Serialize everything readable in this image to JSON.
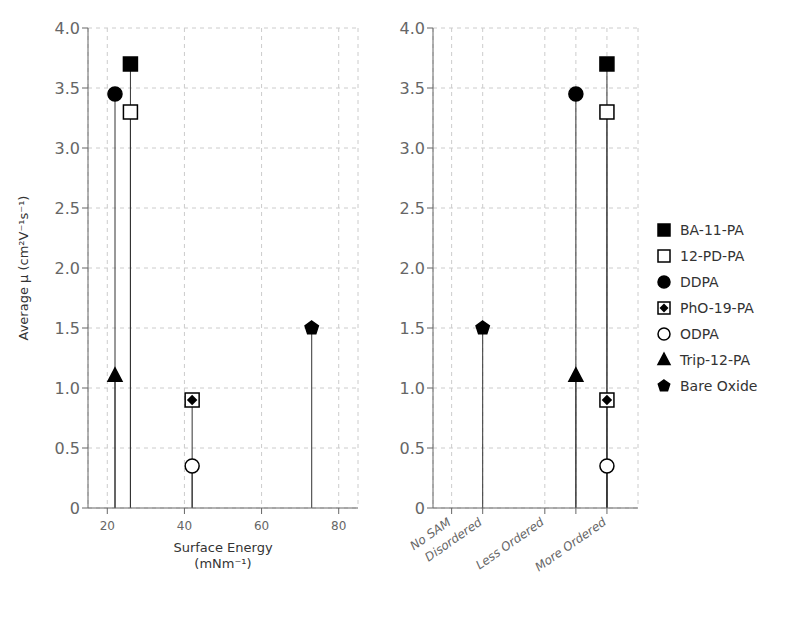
{
  "chart_data": [
    {
      "type": "scatter",
      "x_label": "Surface Energy\n(mNm⁻¹)",
      "y_label": "Average μ (cm²V⁻¹s⁻¹)",
      "xlim": [
        15,
        85
      ],
      "xticks": [
        20,
        40,
        60,
        80
      ],
      "ylim": [
        0,
        4.0
      ],
      "yticks": [
        0,
        0.5,
        {
          "value": 1.0,
          "label": "1.0"
        },
        1.5,
        {
          "value": 2.0,
          "label": "2.0"
        },
        2.5,
        {
          "value": 3.0,
          "label": "3.0"
        },
        3.5,
        {
          "value": 4.0,
          "label": "4.0"
        }
      ],
      "grid": true,
      "series": [
        {
          "name": "BA-11-PA",
          "marker": "square",
          "color": "black",
          "x": [
            26
          ],
          "values": [
            3.7
          ]
        },
        {
          "name": "12-PD-PA",
          "marker": "square",
          "color": "white",
          "x": [
            26
          ],
          "values": [
            3.3
          ]
        },
        {
          "name": "DDPA",
          "marker": "circle",
          "color": "black",
          "x": [
            22
          ],
          "values": [
            3.45
          ]
        },
        {
          "name": "PhO-19-PA",
          "marker": "diamond_in_square",
          "color": "black",
          "x": [
            42
          ],
          "values": [
            0.9
          ]
        },
        {
          "name": "ODPA",
          "marker": "circle",
          "color": "white",
          "x": [
            42
          ],
          "values": [
            0.35
          ]
        },
        {
          "name": "Trip-12-PA",
          "marker": "triangle",
          "color": "black",
          "x": [
            22
          ],
          "values": [
            1.1
          ]
        },
        {
          "name": "Bare Oxide",
          "marker": "pentagon",
          "color": "black",
          "x": [
            73
          ],
          "values": [
            1.5
          ]
        }
      ]
    },
    {
      "type": "scatter",
      "xlim": [
        -0.8,
        2.5
      ],
      "xticks": [
        {
          "value": -0.5,
          "label": "No SAM"
        },
        {
          "value": 0.0,
          "label": "Disordered"
        },
        {
          "value": 1.0,
          "label": "Less Ordered"
        },
        {
          "value": 1.5,
          "label": null
        },
        {
          "value": 2.0,
          "label": "More Ordered"
        }
      ],
      "ylim": [
        0,
        4.0
      ],
      "yticks": [
        0,
        0.5,
        {
          "value": 1.0,
          "label": "1.0"
        },
        1.5,
        {
          "value": 2.0,
          "label": "2.0"
        },
        2.5,
        {
          "value": 3.0,
          "label": "3.0"
        },
        3.5,
        {
          "value": 4.0,
          "label": "4.0"
        }
      ],
      "grid": true,
      "legend": "right",
      "series": [
        {
          "name": "BA-11-PA",
          "marker": "square",
          "color": "black",
          "x": [
            2.0
          ],
          "values": [
            3.7
          ]
        },
        {
          "name": "12-PD-PA",
          "marker": "square",
          "color": "white",
          "x": [
            2.0
          ],
          "values": [
            3.3
          ]
        },
        {
          "name": "DDPA",
          "marker": "circle",
          "color": "black",
          "x": [
            1.5
          ],
          "values": [
            3.45
          ]
        },
        {
          "name": "PhO-19-PA",
          "marker": "diamond_in_square",
          "color": "black",
          "x": [
            2.0
          ],
          "values": [
            0.9
          ]
        },
        {
          "name": "ODPA",
          "marker": "circle",
          "color": "white",
          "x": [
            2.0
          ],
          "values": [
            0.35
          ]
        },
        {
          "name": "Trip-12-PA",
          "marker": "triangle",
          "color": "black",
          "x": [
            1.5
          ],
          "values": [
            1.1
          ]
        },
        {
          "name": "Bare Oxide",
          "marker": "pentagon",
          "color": "black",
          "x": [
            0.0
          ],
          "values": [
            1.5
          ]
        }
      ]
    }
  ]
}
